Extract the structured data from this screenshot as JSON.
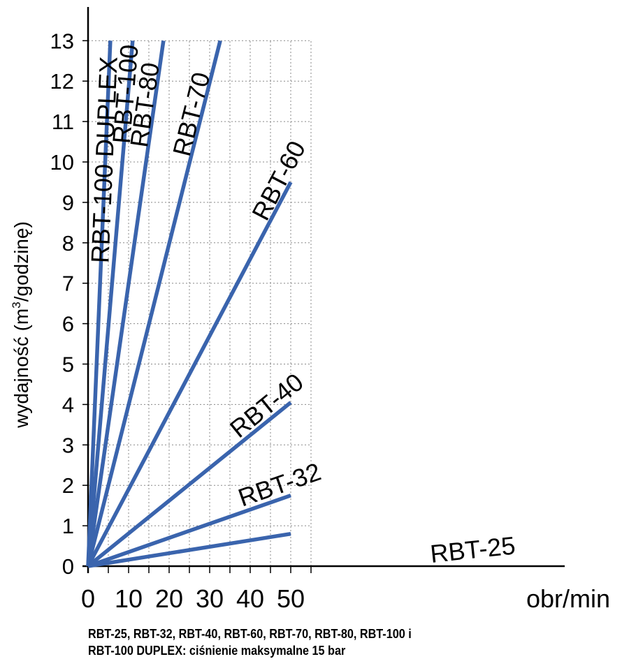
{
  "chart_data": {
    "type": "line",
    "xlabel": "obr/min",
    "ylabel_parts": [
      "wydajność (m",
      "3",
      "/godzinę)"
    ],
    "xlim": [
      0,
      55
    ],
    "ylim": [
      0,
      13
    ],
    "x_ticks": [
      0,
      10,
      20,
      30,
      40,
      50
    ],
    "y_ticks": [
      0,
      1,
      2,
      3,
      4,
      5,
      6,
      7,
      8,
      9,
      10,
      11,
      12,
      13
    ],
    "grid": true,
    "line_color": "#3a64ad",
    "series": [
      {
        "name": "RBT-25",
        "x": [
          0,
          50
        ],
        "y": [
          0,
          0.8
        ]
      },
      {
        "name": "RBT-32",
        "x": [
          0,
          50
        ],
        "y": [
          0,
          1.75
        ]
      },
      {
        "name": "RBT-40",
        "x": [
          0,
          50
        ],
        "y": [
          0,
          4.05
        ]
      },
      {
        "name": "RBT-60",
        "x": [
          0,
          50
        ],
        "y": [
          0,
          9.5
        ]
      },
      {
        "name": "RBT-70",
        "x": [
          0,
          32.6
        ],
        "y": [
          0,
          13.0
        ]
      },
      {
        "name": "RBT-80",
        "x": [
          0,
          18.6
        ],
        "y": [
          0,
          13.0
        ]
      },
      {
        "name": "RBT-100",
        "x": [
          0,
          11.0
        ],
        "y": [
          0,
          13.0
        ]
      },
      {
        "name": "RBT-100 DUPLEX",
        "x": [
          0,
          5.5
        ],
        "y": [
          0,
          13.0
        ]
      }
    ],
    "footnote": [
      "RBT-25, RBT-32, RBT-40, RBT-60, RBT-70, RBT-80, RBT-100 i",
      "RBT-100 DUPLEX: ciśnienie maksymalne 15 bar"
    ]
  }
}
